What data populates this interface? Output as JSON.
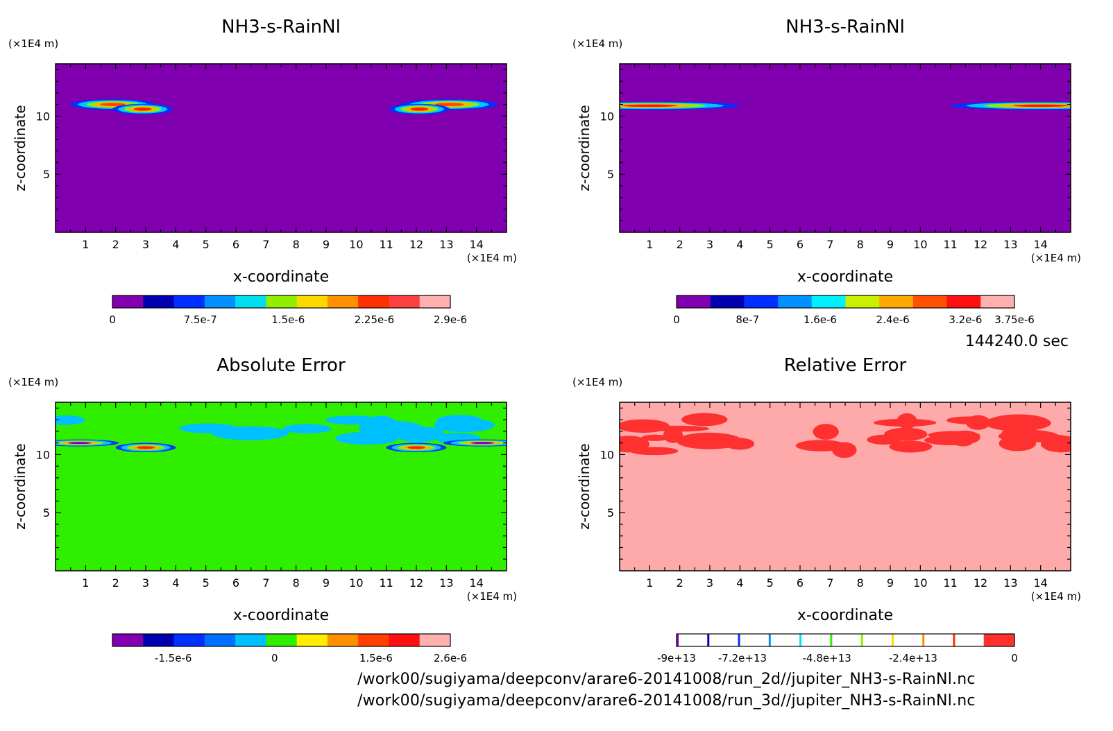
{
  "time_label": "144240.0 sec",
  "footer": {
    "line1": "/work00/sugiyama/deepconv/arare6-20141008/run_2d//jupiter_NH3-s-RainNl.nc",
    "line2": "/work00/sugiyama/deepconv/arare6-20141008/run_3d//jupiter_NH3-s-RainNl.nc"
  },
  "chart_data": [
    {
      "type": "heatmap",
      "title": "NH3-s-RainNl",
      "xlabel": "x-coordinate",
      "ylabel": "z-coordinate",
      "x_unit": "(×1E4 m)",
      "y_unit": "(×1E4 m)",
      "xlim": [
        0,
        15
      ],
      "ylim": [
        0,
        14.5
      ],
      "x_ticks": [
        "1",
        "2",
        "3",
        "4",
        "5",
        "6",
        "7",
        "8",
        "9",
        "10",
        "11",
        "12",
        "13",
        "14"
      ],
      "y_ticks": [
        "5",
        "10"
      ],
      "background": "#8000b0",
      "levels": [
        0,
        7.5e-07,
        1.5e-06,
        2.25e-06,
        2.9e-06
      ],
      "colorbar_labels": [
        "0",
        "7.5e-7",
        "1.5e-6",
        "2.25e-6",
        "2.9e-6"
      ],
      "colorbar_colors": [
        "#8000b0",
        "#0000b0",
        "#0030ff",
        "#0090ff",
        "#00ddee",
        "#90ee00",
        "#ffd800",
        "#ff9000",
        "#ff3000",
        "#ff4040",
        "#ffb0b0"
      ],
      "blobs": [
        {
          "x": 1.9,
          "z": 11.0,
          "rx": 1.4,
          "rz": 0.45,
          "core": "#ff4000"
        },
        {
          "x": 2.9,
          "z": 10.6,
          "rx": 1.0,
          "rz": 0.45,
          "core": "#ff2000"
        },
        {
          "x": 13.1,
          "z": 11.0,
          "rx": 1.6,
          "rz": 0.45,
          "core": "#ff4000"
        },
        {
          "x": 12.1,
          "z": 10.6,
          "rx": 1.0,
          "rz": 0.45,
          "core": "#ff2000"
        }
      ]
    },
    {
      "type": "heatmap",
      "title": "NH3-s-RainNl",
      "xlabel": "x-coordinate",
      "ylabel": "z-coordinate",
      "x_unit": "(×1E4 m)",
      "y_unit": "(×1E4 m)",
      "xlim": [
        0,
        15
      ],
      "ylim": [
        0,
        14.5
      ],
      "x_ticks": [
        "1",
        "2",
        "3",
        "4",
        "5",
        "6",
        "7",
        "8",
        "9",
        "10",
        "11",
        "12",
        "13",
        "14"
      ],
      "y_ticks": [
        "5",
        "10"
      ],
      "background": "#8000b0",
      "levels": [
        0,
        8e-07,
        1.6e-06,
        2.4e-06,
        3.2e-06,
        3.75e-06
      ],
      "colorbar_labels": [
        "0",
        "8e-7",
        "1.6e-6",
        "2.4e-6",
        "3.2e-6",
        "3.75e-6"
      ],
      "colorbar_colors": [
        "#8000b0",
        "#0000b0",
        "#0030ff",
        "#0090ff",
        "#00f0ff",
        "#c8f000",
        "#ffaa00",
        "#ff5000",
        "#ff1010",
        "#ffb0b0"
      ],
      "blobs": [
        {
          "x": 1.0,
          "z": 10.9,
          "rx": 3.0,
          "rz": 0.35,
          "core": "#ff1010"
        },
        {
          "x": 14.0,
          "z": 10.9,
          "rx": 3.0,
          "rz": 0.35,
          "core": "#ff1010"
        }
      ]
    },
    {
      "type": "heatmap",
      "title": "Absolute Error",
      "xlabel": "x-coordinate",
      "ylabel": "z-coordinate",
      "x_unit": "(×1E4 m)",
      "y_unit": "(×1E4 m)",
      "xlim": [
        0,
        15
      ],
      "ylim": [
        0,
        14.5
      ],
      "x_ticks": [
        "1",
        "2",
        "3",
        "4",
        "5",
        "6",
        "7",
        "8",
        "9",
        "10",
        "11",
        "12",
        "13",
        "14"
      ],
      "y_ticks": [
        "5",
        "10"
      ],
      "background": "#30ee00",
      "levels": [
        -1.5e-06,
        0,
        1.5e-06,
        2.6e-06
      ],
      "colorbar_labels": [
        "-1.5e-6",
        "0",
        "1.5e-6",
        "2.6e-6"
      ],
      "colorbar_colors": [
        "#8000b0",
        "#0000b0",
        "#0030ff",
        "#0070ff",
        "#00c0ff",
        "#30ee00",
        "#ffee00",
        "#ff9000",
        "#ff4000",
        "#ff1010",
        "#ffb0b0"
      ],
      "blobs": [
        {
          "x": 3.0,
          "z": 10.6,
          "rx": 1.0,
          "rz": 0.4,
          "core": "#ff2000"
        },
        {
          "x": 12.0,
          "z": 10.6,
          "rx": 1.0,
          "rz": 0.4,
          "core": "#ff2000"
        },
        {
          "x": 0.8,
          "z": 11.0,
          "rx": 1.3,
          "rz": 0.3,
          "core": "#8000b0"
        },
        {
          "x": 14.2,
          "z": 11.0,
          "rx": 1.3,
          "rz": 0.3,
          "core": "#8000b0"
        }
      ]
    },
    {
      "type": "heatmap",
      "title": "Relative Error",
      "xlabel": "x-coordinate",
      "ylabel": "z-coordinate",
      "x_unit": "(×1E4 m)",
      "y_unit": "(×1E4 m)",
      "xlim": [
        0,
        15
      ],
      "ylim": [
        0,
        14.5
      ],
      "x_ticks": [
        "1",
        "2",
        "3",
        "4",
        "5",
        "6",
        "7",
        "8",
        "9",
        "10",
        "11",
        "12",
        "13",
        "14"
      ],
      "y_ticks": [
        "5",
        "10"
      ],
      "background": "#ffaaaa",
      "levels": [
        -90000000000000.0,
        -72000000000000.0,
        -48000000000000.0,
        -24000000000000.0,
        0
      ],
      "colorbar_labels": [
        "-9e+13",
        "-7.2e+13",
        "-4.8e+13",
        "-2.4e+13",
        "0"
      ],
      "colorbar_colors": [
        "#8000b0",
        "#0000b0",
        "#0030ff",
        "#0090ff",
        "#00e0ff",
        "#30ee00",
        "#90ee00",
        "#ffd800",
        "#ff9000",
        "#ff3000",
        "#ff3030"
      ],
      "blobs": []
    }
  ]
}
